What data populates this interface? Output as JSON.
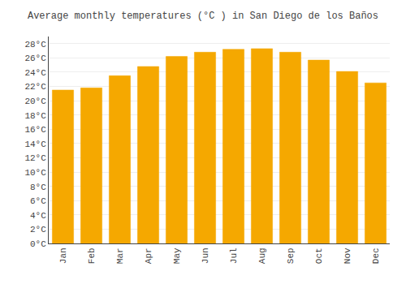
{
  "chart_data": {
    "type": "bar",
    "title": "Average monthly temperatures (°C ) in San Diego de los Baños",
    "categories": [
      "Jan",
      "Feb",
      "Mar",
      "Apr",
      "May",
      "Jun",
      "Jul",
      "Aug",
      "Sep",
      "Oct",
      "Nov",
      "Dec"
    ],
    "values": [
      21.5,
      21.8,
      23.5,
      24.8,
      26.2,
      26.8,
      27.2,
      27.3,
      26.8,
      25.7,
      24.1,
      22.5
    ],
    "color": "#F5A800",
    "ylim": [
      0,
      29
    ],
    "yticks": [
      {
        "value": 0,
        "label": "0°C"
      },
      {
        "value": 2,
        "label": "2°C"
      },
      {
        "value": 4,
        "label": "4°C"
      },
      {
        "value": 6,
        "label": "6°C"
      },
      {
        "value": 8,
        "label": "8°C"
      },
      {
        "value": 10,
        "label": "10°C"
      },
      {
        "value": 12,
        "label": "12°C"
      },
      {
        "value": 14,
        "label": "14°C"
      },
      {
        "value": 16,
        "label": "16°C"
      },
      {
        "value": 18,
        "label": "18°C"
      },
      {
        "value": 20,
        "label": "20°C"
      },
      {
        "value": 22,
        "label": "22°C"
      },
      {
        "value": 24,
        "label": "24°C"
      },
      {
        "value": 26,
        "label": "26°C"
      },
      {
        "value": 28,
        "label": "28°C"
      }
    ],
    "grid": true
  }
}
